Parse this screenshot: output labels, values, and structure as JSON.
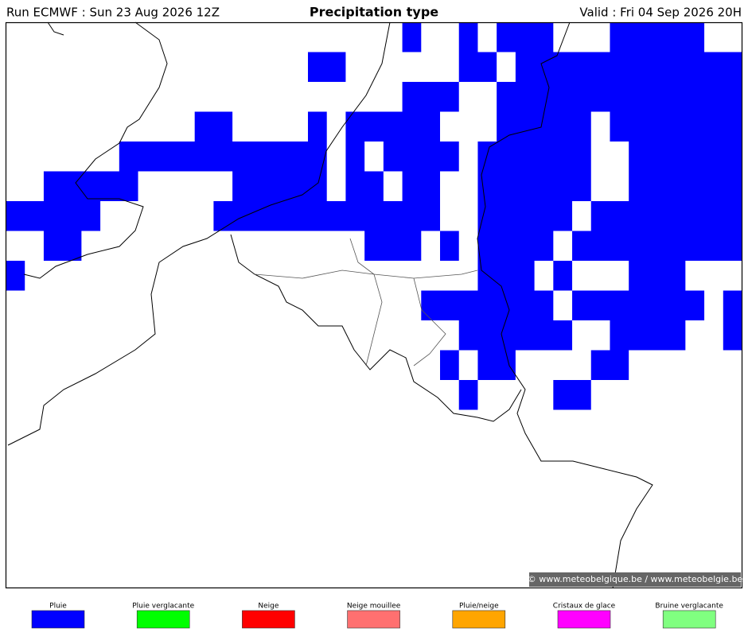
{
  "header": {
    "run": "Run ECMWF : Sun 23 Aug 2026 12Z",
    "title": "Precipitation type",
    "valid": "Valid : Fri 04 Sep 2026 20H"
  },
  "credit": "© www.meteobelgique.be / www.meteobelgie.be",
  "legend": [
    {
      "label": "Pluie",
      "color": "#0000ff"
    },
    {
      "label": "Pluie verglacante",
      "color": "#00ff00"
    },
    {
      "label": "Neige",
      "color": "#ff0000"
    },
    {
      "label": "Neige mouillee",
      "color": "#ff7070"
    },
    {
      "label": "Pluie/neige",
      "color": "#ffa500"
    },
    {
      "label": "Cristaux de glace",
      "color": "#ff00ff"
    },
    {
      "label": "Bruine verglacante",
      "color": "#80ff80"
    }
  ]
}
